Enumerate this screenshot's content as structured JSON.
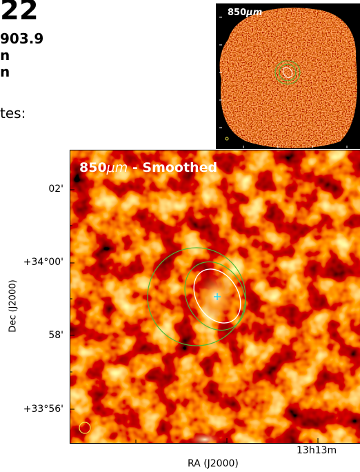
{
  "header": {
    "big_text": "22",
    "line1": "903.9",
    "line2": "n",
    "line3": "n",
    "line4": "tes:"
  },
  "inset_panel": {
    "label_prefix": "850",
    "label_unit": "μm"
  },
  "main_panel": {
    "label_prefix": "850",
    "label_unit": "μm",
    "label_suffix": " - Smoothed",
    "y_ticks": [
      "02'",
      "+34°00'",
      "58'",
      "+33°56'"
    ],
    "x_tick": "13h13m",
    "y_axis_label": "Dec (J2000)",
    "x_axis_label": "RA (J2000)"
  },
  "colors": {
    "map_dark": "#6e0e00",
    "map_mid": "#c83a08",
    "map_bright": "#ffe9b0",
    "contour_green": "#4cbb3a",
    "contour_white": "#ffffff",
    "marker_cyan": "#33d6e8",
    "beam_yellow": "#f0e84a"
  }
}
